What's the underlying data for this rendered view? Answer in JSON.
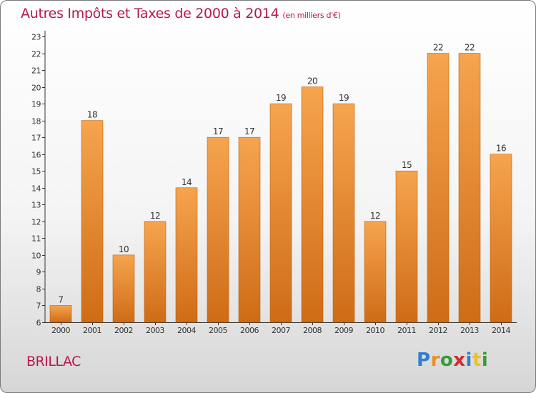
{
  "header": {
    "title": "Autres Impôts et Taxes de 2000 à 2014",
    "unit": "(en milliers d'€)"
  },
  "footer": {
    "commune": "BRILLAC",
    "logo_letters": [
      {
        "char": "P",
        "color": "#2f7fd0"
      },
      {
        "char": "r",
        "color": "#e8902a"
      },
      {
        "char": "o",
        "color": "#3a9a3a"
      },
      {
        "char": "x",
        "color": "#d42a2a"
      },
      {
        "char": "i",
        "color": "#2f7fd0"
      },
      {
        "char": "t",
        "color": "#e8c22a"
      },
      {
        "char": "i",
        "color": "#3a9a3a"
      }
    ]
  },
  "colors": {
    "title": "#b5184f",
    "bar_light": "#f6a44e",
    "bar_dark": "#cf6c16",
    "axis": "#333333"
  },
  "chart_data": {
    "type": "bar",
    "title": "Autres Impôts et Taxes de 2000 à 2014",
    "xlabel": "",
    "ylabel": "",
    "categories": [
      "2000",
      "2001",
      "2002",
      "2003",
      "2004",
      "2005",
      "2006",
      "2007",
      "2008",
      "2009",
      "2010",
      "2011",
      "2012",
      "2013",
      "2014"
    ],
    "values": [
      7,
      18,
      10,
      12,
      14,
      17,
      17,
      19,
      20,
      19,
      12,
      15,
      22,
      22,
      16
    ],
    "ylim": [
      6,
      23
    ],
    "yticks": [
      6,
      7,
      8,
      9,
      10,
      11,
      12,
      13,
      14,
      15,
      16,
      17,
      18,
      19,
      20,
      21,
      22,
      23
    ],
    "grid": false,
    "legend": "none"
  }
}
